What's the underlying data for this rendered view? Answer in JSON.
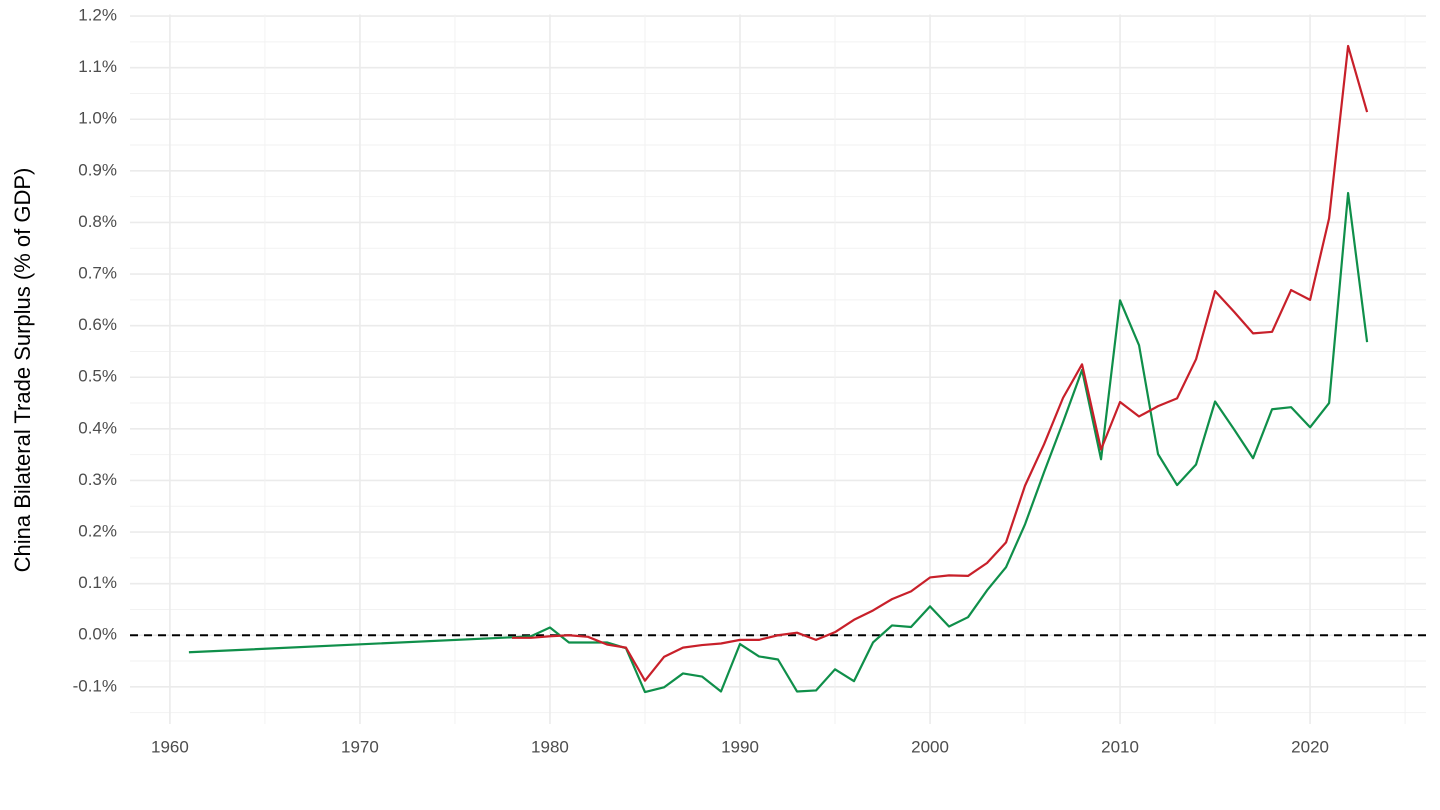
{
  "chart_data": {
    "type": "line",
    "y_label": "China Bilateral Trade Surplus (% of GDP)",
    "xlim": [
      1957.9,
      2026.1
    ],
    "xticks": [
      1960,
      1970,
      1980,
      1990,
      2000,
      2010,
      2020
    ],
    "ylim": [
      -0.172,
      1.203
    ],
    "yticks": [
      {
        "value": -0.1,
        "label": "-0.1%"
      },
      {
        "value": 0.0,
        "label": "0.0%"
      },
      {
        "value": 0.1,
        "label": "0.1%"
      },
      {
        "value": 0.2,
        "label": "0.2%"
      },
      {
        "value": 0.3,
        "label": "0.3%"
      },
      {
        "value": 0.4,
        "label": "0.4%"
      },
      {
        "value": 0.5,
        "label": "0.5%"
      },
      {
        "value": 0.6,
        "label": "0.6%"
      },
      {
        "value": 0.7,
        "label": "0.7%"
      },
      {
        "value": 0.8,
        "label": "0.8%"
      },
      {
        "value": 0.9,
        "label": "0.9%"
      },
      {
        "value": 1.0,
        "label": "1.0%"
      },
      {
        "value": 1.1,
        "label": "1.1%"
      },
      {
        "value": 1.2,
        "label": "1.2%"
      }
    ],
    "grid": true,
    "reference_line": {
      "value": 0,
      "color": "#000000"
    },
    "series": [
      {
        "color": "#0f8f4a",
        "x": [
          1961,
          1978,
          1979,
          1980,
          1981,
          1982,
          1983,
          1984,
          1985,
          1986,
          1987,
          1988,
          1989,
          1990,
          1991,
          1992,
          1993,
          1994,
          1995,
          1996,
          1997,
          1998,
          1999,
          2000,
          2001,
          2002,
          2003,
          2004,
          2005,
          2006,
          2007,
          2008,
          2009,
          2010,
          2011,
          2012,
          2013,
          2014,
          2015,
          2016,
          2017,
          2018,
          2019,
          2020,
          2021,
          2022,
          2023
        ],
        "values": [
          -0.033,
          -0.004,
          -0.002,
          0.015,
          -0.014,
          -0.014,
          -0.014,
          -0.025,
          -0.11,
          -0.101,
          -0.074,
          -0.08,
          -0.109,
          -0.017,
          -0.041,
          -0.047,
          -0.109,
          -0.107,
          -0.066,
          -0.089,
          -0.014,
          0.019,
          0.016,
          0.056,
          0.017,
          0.035,
          0.087,
          0.132,
          0.215,
          0.316,
          0.413,
          0.514,
          0.341,
          0.649,
          0.562,
          0.351,
          0.291,
          0.331,
          0.453,
          0.399,
          0.343,
          0.438,
          0.442,
          0.403,
          0.45,
          0.857,
          0.568
        ]
      },
      {
        "color": "#c8202a",
        "x": [
          1978,
          1979,
          1980,
          1981,
          1982,
          1983,
          1984,
          1985,
          1986,
          1987,
          1988,
          1989,
          1990,
          1991,
          1992,
          1993,
          1994,
          1995,
          1996,
          1997,
          1998,
          1999,
          2000,
          2001,
          2002,
          2003,
          2004,
          2005,
          2006,
          2007,
          2008,
          2009,
          2010,
          2011,
          2012,
          2013,
          2014,
          2015,
          2016,
          2017,
          2018,
          2019,
          2020,
          2021,
          2022,
          2023
        ],
        "values": [
          -0.005,
          -0.005,
          -0.002,
          0.0,
          -0.003,
          -0.018,
          -0.024,
          -0.088,
          -0.042,
          -0.024,
          -0.019,
          -0.016,
          -0.009,
          -0.009,
          0.0,
          0.005,
          -0.009,
          0.006,
          0.03,
          0.048,
          0.07,
          0.085,
          0.112,
          0.116,
          0.115,
          0.14,
          0.18,
          0.29,
          0.37,
          0.46,
          0.525,
          0.36,
          0.452,
          0.424,
          0.444,
          0.459,
          0.535,
          0.667,
          0.627,
          0.585,
          0.588,
          0.669,
          0.65,
          0.808,
          1.142,
          1.014
        ]
      }
    ]
  }
}
